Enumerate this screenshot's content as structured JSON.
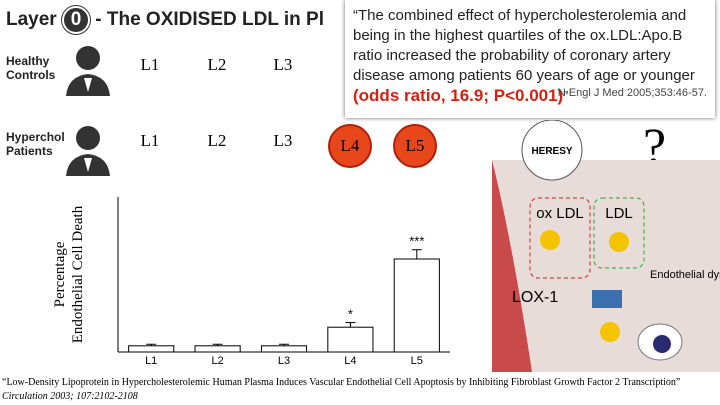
{
  "header": {
    "title_prefix": "Layer",
    "layer_number": "0",
    "title_rest": "- The OXIDISED LDL in Pl"
  },
  "groups": [
    {
      "label": "Healthy Controls",
      "items": [
        "L1",
        "L2",
        "L3"
      ]
    },
    {
      "label": "Hyperchol Patients",
      "items": [
        "L1",
        "L2",
        "L3",
        "L4",
        "L5"
      ]
    }
  ],
  "quote": {
    "text": "“The combined effect of hypercholesterolemia and being in the highest quartiles of the ox.LDL:Apo.B ratio increased the probability of coronary artery disease among patients 60 years of age or younger",
    "highlight": "(odds ratio, 16.9; P<0.001)",
    "close": "”",
    "citation": "N Engl J Med 2005;353:46-57."
  },
  "question": "?",
  "chart_data": {
    "type": "bar",
    "y_label": [
      "Percentage",
      "Endothelial Cell Death"
    ],
    "categories": [
      "L1",
      "L2",
      "L3",
      "L4",
      "L5"
    ],
    "values": [
      2,
      2,
      2,
      8,
      30
    ],
    "errors": [
      0.5,
      0.5,
      0.5,
      1.5,
      3
    ],
    "stars": [
      null,
      null,
      null,
      "*",
      "***"
    ],
    "ylim": [
      0,
      50
    ],
    "color": "#ffffff"
  },
  "figure": {
    "seal": "HERESY",
    "ox_ldl": "ox LDL",
    "ldl": "LDL",
    "receptor": "LOX-1",
    "effect": "Endothelial dysfunction"
  },
  "footnote": {
    "title": "“Low-Density Lipoprotein in Hypercholesterolemic Human Plasma Induces Vascular Endothelial Cell Apoptosis by Inhibiting Fibroblast Growth Factor 2 Transcription”",
    "journal": "Circulation 2003; 107:2102-2108"
  }
}
